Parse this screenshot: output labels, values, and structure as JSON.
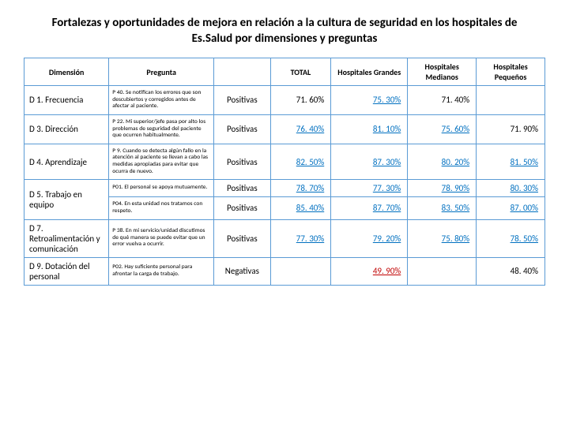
{
  "title": "Fortalezas y oportunidades de mejora en relación a la cultura de seguridad en los hospitales de Es.Salud por dimensiones y preguntas",
  "headers": {
    "dimension": "Dimensión",
    "pregunta": "Pregunta",
    "total": "TOTAL",
    "hg": "Hospitales Grandes",
    "hm": "Hospitales Medianos",
    "hp": "Hospitales Pequeños"
  },
  "rows": [
    {
      "dim": "D 1. Frecuencia",
      "preg": "P 40. Se notifican los errores que son descubiertos y corregidos antes de afectar al paciente.",
      "type": "Positivas",
      "total": {
        "v": "71. 60%",
        "c": "black"
      },
      "hg": {
        "v": "75. 30%",
        "c": "blue"
      },
      "hm": {
        "v": "71. 40%",
        "c": "black"
      },
      "hp": {
        "v": "",
        "c": "black"
      }
    },
    {
      "dim": "D 3. Dirección",
      "preg": "P 22. Mi superior/jefe pasa por alto los problemas de seguridad del paciente que ocurren habitualmente.",
      "type": "Positivas",
      "total": {
        "v": "76. 40%",
        "c": "blue"
      },
      "hg": {
        "v": "81. 10%",
        "c": "blue"
      },
      "hm": {
        "v": "75. 60%",
        "c": "blue"
      },
      "hp": {
        "v": "71. 90%",
        "c": "black"
      }
    },
    {
      "dim": "D 4. Aprendizaje",
      "preg": "P 9. Cuando se detecta algún fallo en la atención al paciente se llevan a cabo las medidas apropiadas para evitar que ocurra de nuevo.",
      "type": "Positivas",
      "total": {
        "v": "82. 50%",
        "c": "blue"
      },
      "hg": {
        "v": "87. 30%",
        "c": "blue"
      },
      "hm": {
        "v": "80. 20%",
        "c": "blue"
      },
      "hp": {
        "v": "81. 50%",
        "c": "blue"
      }
    },
    {
      "dim": "D 5. Trabajo en equipo",
      "rowspan": 2,
      "preg": "P01. El personal se apoya mutuamente.",
      "type": "Positivas",
      "total": {
        "v": "78. 70%",
        "c": "blue"
      },
      "hg": {
        "v": "77. 30%",
        "c": "blue"
      },
      "hm": {
        "v": "78. 90%",
        "c": "blue"
      },
      "hp": {
        "v": "80. 30%",
        "c": "blue"
      }
    },
    {
      "skipdim": true,
      "preg": "P04. En esta unidad nos tratamos con respeto.",
      "type": "Positivas",
      "total": {
        "v": "85. 40%",
        "c": "blue"
      },
      "hg": {
        "v": "87. 70%",
        "c": "blue"
      },
      "hm": {
        "v": "83. 50%",
        "c": "blue"
      },
      "hp": {
        "v": "87. 00%",
        "c": "blue"
      }
    },
    {
      "dim": "D 7. Retroalimentación y comunicación",
      "preg": "P 38. En mi servicio/unidad discutimos de qué manera se puede evitar que un error vuelva a ocurrir.",
      "type": "Positivas",
      "total": {
        "v": "77. 30%",
        "c": "blue"
      },
      "hg": {
        "v": "79. 20%",
        "c": "blue"
      },
      "hm": {
        "v": "75. 80%",
        "c": "blue"
      },
      "hp": {
        "v": "78. 50%",
        "c": "blue"
      }
    },
    {
      "dim": "D 9. Dotación del personal",
      "preg": "P02. Hay suficiente personal para afrontar la carga de trabajo.",
      "type": "Negativas",
      "total": {
        "v": "",
        "c": "black"
      },
      "hg": {
        "v": "49. 90%",
        "c": "red"
      },
      "hm": {
        "v": "",
        "c": "black"
      },
      "hp": {
        "v": "48. 40%",
        "c": "black"
      }
    }
  ]
}
